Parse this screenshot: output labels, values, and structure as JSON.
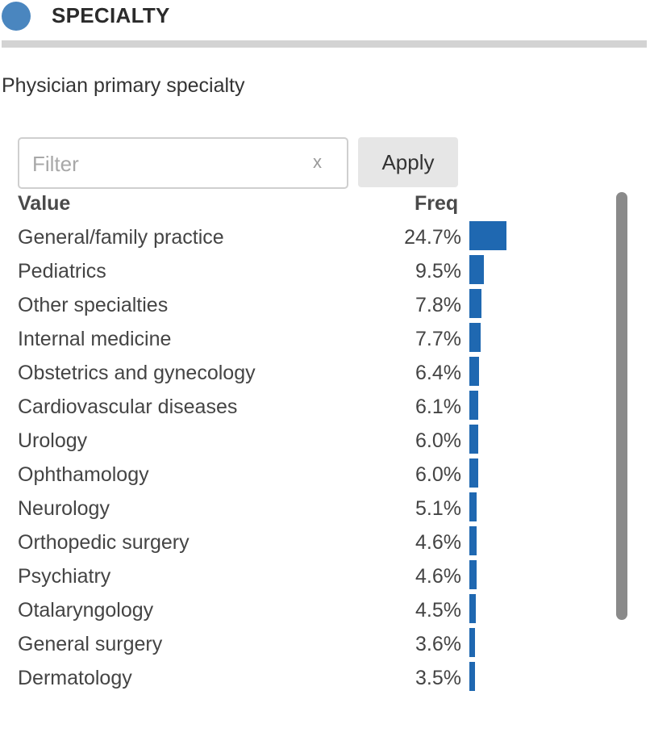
{
  "header": {
    "title": "SPECIALTY",
    "dot_color": "#4a86bf"
  },
  "description": "Physician primary specialty",
  "filter": {
    "placeholder": "Filter",
    "value": "",
    "clear_label": "x",
    "apply_label": "Apply"
  },
  "table": {
    "col_value": "Value",
    "col_freq": "Freq",
    "bar_color": "#1f68b1",
    "rows": [
      {
        "value": "General/family practice",
        "freq": "24.7%",
        "pct": 24.7
      },
      {
        "value": "Pediatrics",
        "freq": "9.5%",
        "pct": 9.5
      },
      {
        "value": "Other specialties",
        "freq": "7.8%",
        "pct": 7.8
      },
      {
        "value": "Internal medicine",
        "freq": "7.7%",
        "pct": 7.7
      },
      {
        "value": "Obstetrics and gynecology",
        "freq": "6.4%",
        "pct": 6.4
      },
      {
        "value": "Cardiovascular diseases",
        "freq": "6.1%",
        "pct": 6.1
      },
      {
        "value": "Urology",
        "freq": "6.0%",
        "pct": 6.0
      },
      {
        "value": "Ophthamology",
        "freq": "6.0%",
        "pct": 6.0
      },
      {
        "value": "Neurology",
        "freq": "5.1%",
        "pct": 5.1
      },
      {
        "value": "Orthopedic surgery",
        "freq": "4.6%",
        "pct": 4.6
      },
      {
        "value": "Psychiatry",
        "freq": "4.6%",
        "pct": 4.6
      },
      {
        "value": "Otalaryngology",
        "freq": "4.5%",
        "pct": 4.5
      },
      {
        "value": "General surgery",
        "freq": "3.6%",
        "pct": 3.6
      },
      {
        "value": "Dermatology",
        "freq": "3.5%",
        "pct": 3.5
      }
    ]
  }
}
